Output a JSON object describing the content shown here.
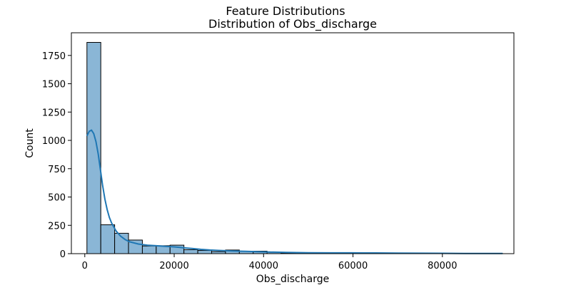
{
  "figure": {
    "suptitle": "Feature Distributions"
  },
  "chart_data": {
    "type": "bar",
    "title": "Distribution of Obs_discharge",
    "xlabel": "Obs_discharge",
    "ylabel": "Count",
    "xlim": [
      -3000,
      96000
    ],
    "ylim": [
      0,
      1950
    ],
    "x_ticks": [
      0,
      20000,
      40000,
      60000,
      80000
    ],
    "y_ticks": [
      0,
      250,
      500,
      750,
      1000,
      1250,
      1500,
      1750
    ],
    "bin_width": 3100,
    "bin_start": 480,
    "bins": [
      {
        "x0": 480,
        "x1": 3580,
        "count": 1865
      },
      {
        "x0": 3580,
        "x1": 6680,
        "count": 255
      },
      {
        "x0": 6680,
        "x1": 9780,
        "count": 180
      },
      {
        "x0": 9780,
        "x1": 12880,
        "count": 120
      },
      {
        "x0": 12880,
        "x1": 15980,
        "count": 68
      },
      {
        "x0": 15980,
        "x1": 19080,
        "count": 70
      },
      {
        "x0": 19080,
        "x1": 22180,
        "count": 75
      },
      {
        "x0": 22180,
        "x1": 25280,
        "count": 35
      },
      {
        "x0": 25280,
        "x1": 28380,
        "count": 28
      },
      {
        "x0": 28380,
        "x1": 31480,
        "count": 18
      },
      {
        "x0": 31480,
        "x1": 34580,
        "count": 32
      },
      {
        "x0": 34580,
        "x1": 37680,
        "count": 22
      },
      {
        "x0": 37680,
        "x1": 40780,
        "count": 22
      },
      {
        "x0": 40780,
        "x1": 43880,
        "count": 12
      },
      {
        "x0": 43880,
        "x1": 46980,
        "count": 6
      },
      {
        "x0": 46980,
        "x1": 50080,
        "count": 4
      },
      {
        "x0": 50080,
        "x1": 53180,
        "count": 4
      },
      {
        "x0": 53180,
        "x1": 56280,
        "count": 3
      },
      {
        "x0": 56280,
        "x1": 59380,
        "count": 4
      },
      {
        "x0": 59380,
        "x1": 62480,
        "count": 6
      },
      {
        "x0": 62480,
        "x1": 65580,
        "count": 5
      },
      {
        "x0": 65580,
        "x1": 68680,
        "count": 3
      },
      {
        "x0": 68680,
        "x1": 71780,
        "count": 2
      },
      {
        "x0": 71780,
        "x1": 74880,
        "count": 2
      },
      {
        "x0": 74880,
        "x1": 77980,
        "count": 2
      },
      {
        "x0": 77980,
        "x1": 81080,
        "count": 2
      },
      {
        "x0": 81080,
        "x1": 84180,
        "count": 1
      },
      {
        "x0": 84180,
        "x1": 87280,
        "count": 1
      },
      {
        "x0": 87280,
        "x1": 90380,
        "count": 1
      },
      {
        "x0": 90380,
        "x1": 93480,
        "count": 1
      }
    ],
    "kde": {
      "x": [
        480,
        1000,
        1500,
        2000,
        2500,
        3000,
        3500,
        4000,
        4500,
        5000,
        5500,
        6000,
        7000,
        8000,
        9000,
        10000,
        12000,
        14000,
        16000,
        18000,
        20000,
        22000,
        24000,
        26000,
        28000,
        30000,
        33000,
        36000,
        40000,
        45000,
        50000,
        55000,
        60000,
        65000,
        70000,
        75000,
        80000,
        85000,
        90000,
        93480
      ],
      "y": [
        1040,
        1080,
        1090,
        1060,
        990,
        880,
        740,
        600,
        480,
        390,
        320,
        270,
        200,
        155,
        125,
        105,
        85,
        75,
        70,
        65,
        60,
        52,
        45,
        38,
        32,
        28,
        24,
        20,
        16,
        11,
        8,
        7,
        7,
        6,
        5,
        4,
        3,
        2,
        2,
        1
      ]
    },
    "colors": {
      "bar_fill": "#8ab6d6",
      "bar_edge": "#000000",
      "kde_line": "#1f77b4"
    },
    "grid": false,
    "legend": "none"
  }
}
